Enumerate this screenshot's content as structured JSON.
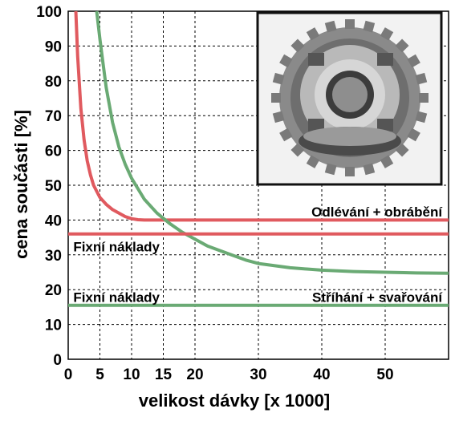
{
  "chart_data": {
    "type": "line",
    "xlabel": "velikost dávky [x 1000]",
    "ylabel": "cena součásti [%]",
    "xlim": [
      0,
      60
    ],
    "ylim": [
      0,
      100
    ],
    "x_ticks": [
      0,
      5,
      10,
      15,
      20,
      30,
      40,
      50
    ],
    "y_ticks": [
      0,
      10,
      20,
      30,
      40,
      50,
      60,
      70,
      80,
      90,
      100
    ],
    "grid": true,
    "colors": {
      "red": "#e05a5f",
      "green": "#6aaa74"
    },
    "series": [
      {
        "color": "red",
        "x": [
          1.2,
          1.5,
          2,
          2.5,
          3,
          3.5,
          4,
          5,
          6,
          7,
          8,
          9,
          10,
          11,
          12,
          14,
          16,
          20,
          30,
          40,
          50,
          60
        ],
        "y": [
          100,
          87,
          72,
          63,
          57,
          53,
          50,
          46.5,
          44.5,
          43,
          42,
          41,
          40.4,
          40.1,
          40,
          40,
          40,
          40,
          40,
          40,
          40,
          40
        ]
      },
      {
        "color": "green",
        "x": [
          4.5,
          5,
          5.5,
          6,
          7,
          8,
          9,
          10,
          12,
          14,
          16,
          18,
          20,
          22,
          25,
          28,
          30,
          35,
          40,
          45,
          50,
          55,
          60
        ],
        "y": [
          100,
          92,
          85,
          78,
          68,
          61,
          56,
          52,
          46,
          42,
          39,
          36.5,
          34.5,
          32.5,
          30.5,
          28.5,
          27.5,
          26.3,
          25.6,
          25.2,
          25,
          24.8,
          24.7
        ]
      },
      {
        "color": "red",
        "x": [
          0,
          60
        ],
        "y": [
          36,
          36
        ]
      },
      {
        "color": "green",
        "x": [
          0,
          60
        ],
        "y": [
          15.5,
          15.5
        ]
      }
    ],
    "annotations": [
      {
        "text": "Odlévání + obrábění",
        "x": 59,
        "y": 41,
        "anchor": "end"
      },
      {
        "text": "Fixní náklady",
        "x": 0.8,
        "y": 31,
        "anchor": "start"
      },
      {
        "text": "Fixní náklady",
        "x": 0.8,
        "y": 16.5,
        "anchor": "start"
      },
      {
        "text": "Stříhání + svařování",
        "x": 59,
        "y": 16.5,
        "anchor": "end"
      }
    ],
    "inset_image": "sprocket-gear-photo"
  }
}
